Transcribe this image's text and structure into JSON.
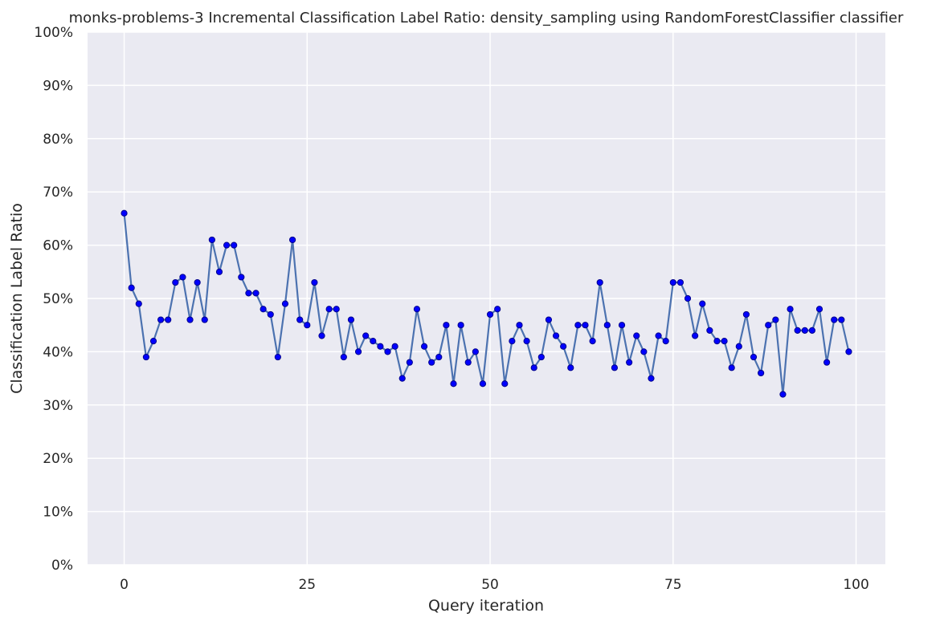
{
  "chart_data": {
    "type": "line",
    "title": "monks-problems-3 Incremental Classification Label Ratio: density_sampling using RandomForestClassifier classifier",
    "xlabel": "Query iteration",
    "ylabel": "Classification Label Ratio",
    "xlim": [
      -5,
      104
    ],
    "ylim": [
      0,
      1
    ],
    "x_ticks": [
      0,
      25,
      50,
      75,
      100
    ],
    "y_ticks": [
      0,
      0.1,
      0.2,
      0.3,
      0.4,
      0.5,
      0.6,
      0.7,
      0.8,
      0.9,
      1.0
    ],
    "y_tick_labels": [
      "0%",
      "10%",
      "20%",
      "30%",
      "40%",
      "50%",
      "60%",
      "70%",
      "80%",
      "90%",
      "100%"
    ],
    "grid": true,
    "x": [
      0,
      1,
      2,
      3,
      4,
      5,
      6,
      7,
      8,
      9,
      10,
      11,
      12,
      13,
      14,
      15,
      16,
      17,
      18,
      19,
      20,
      21,
      22,
      23,
      24,
      25,
      26,
      27,
      28,
      29,
      30,
      31,
      32,
      33,
      34,
      35,
      36,
      37,
      38,
      39,
      40,
      41,
      42,
      43,
      44,
      45,
      46,
      47,
      48,
      49,
      50,
      51,
      52,
      53,
      54,
      55,
      56,
      57,
      58,
      59,
      60,
      61,
      62,
      63,
      64,
      65,
      66,
      67,
      68,
      69,
      70,
      71,
      72,
      73,
      74,
      75,
      76,
      77,
      78,
      79,
      80,
      81,
      82,
      83,
      84,
      85,
      86,
      87,
      88,
      89,
      90,
      91,
      92,
      93,
      94,
      95,
      96,
      97,
      98,
      99
    ],
    "values": [
      0.66,
      0.52,
      0.49,
      0.39,
      0.42,
      0.46,
      0.46,
      0.53,
      0.54,
      0.46,
      0.53,
      0.46,
      0.61,
      0.55,
      0.6,
      0.6,
      0.54,
      0.51,
      0.51,
      0.48,
      0.47,
      0.39,
      0.49,
      0.61,
      0.46,
      0.45,
      0.53,
      0.43,
      0.48,
      0.48,
      0.39,
      0.46,
      0.4,
      0.43,
      0.42,
      0.41,
      0.4,
      0.41,
      0.35,
      0.38,
      0.48,
      0.41,
      0.38,
      0.39,
      0.45,
      0.34,
      0.45,
      0.38,
      0.4,
      0.34,
      0.47,
      0.48,
      0.34,
      0.42,
      0.45,
      0.42,
      0.37,
      0.39,
      0.46,
      0.43,
      0.41,
      0.37,
      0.45,
      0.45,
      0.42,
      0.53,
      0.45,
      0.37,
      0.45,
      0.38,
      0.43,
      0.4,
      0.35,
      0.43,
      0.42,
      0.53,
      0.53,
      0.5,
      0.43,
      0.49,
      0.44,
      0.42,
      0.42,
      0.37,
      0.41,
      0.47,
      0.39,
      0.36,
      0.45,
      0.46,
      0.32,
      0.48,
      0.44,
      0.44,
      0.44,
      0.48,
      0.38,
      0.46,
      0.46,
      0.4
    ],
    "colors": {
      "background": "#eaeaf2",
      "grid": "#ffffff",
      "line": "#4c72b0",
      "marker": "#0000ff",
      "marker_edge": "#00008b"
    }
  }
}
